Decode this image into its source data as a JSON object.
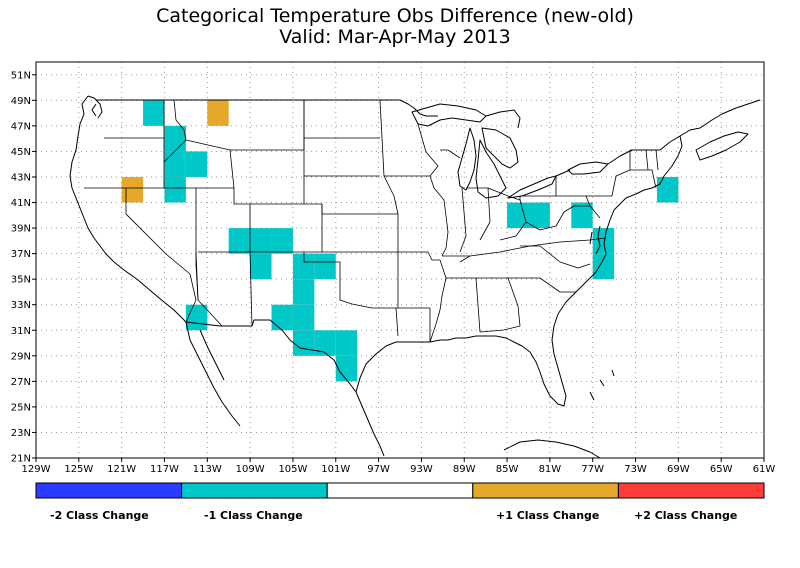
{
  "title": {
    "line1": "Categorical Temperature Obs Difference (new-old)",
    "line2": "Valid: Mar-Apr-May 2013"
  },
  "map": {
    "lon_range": [
      -129,
      -61
    ],
    "lat_range": [
      21,
      52
    ],
    "grid": true,
    "lat_ticks": [
      "51N",
      "49N",
      "47N",
      "45N",
      "43N",
      "41N",
      "39N",
      "37N",
      "35N",
      "33N",
      "31N",
      "29N",
      "27N",
      "25N",
      "23N",
      "21N"
    ],
    "lon_ticks": [
      "129W",
      "125W",
      "121W",
      "117W",
      "113W",
      "109W",
      "105W",
      "101W",
      "97W",
      "93W",
      "89W",
      "85W",
      "81W",
      "77W",
      "73W",
      "69W",
      "65W",
      "61W"
    ],
    "cell_size_deg": 2,
    "cells": [
      {
        "lon": -118,
        "lat": 48,
        "category": -1
      },
      {
        "lon": -116,
        "lat": 46,
        "category": -1
      },
      {
        "lon": -116,
        "lat": 44,
        "category": -1
      },
      {
        "lon": -114,
        "lat": 44,
        "category": -1
      },
      {
        "lon": -116,
        "lat": 42,
        "category": -1
      },
      {
        "lon": -112,
        "lat": 48,
        "category": 1
      },
      {
        "lon": -120,
        "lat": 42,
        "category": 1
      },
      {
        "lon": -110,
        "lat": 38,
        "category": -1
      },
      {
        "lon": -108,
        "lat": 38,
        "category": -1
      },
      {
        "lon": -106,
        "lat": 38,
        "category": -1
      },
      {
        "lon": -108,
        "lat": 36,
        "category": -1
      },
      {
        "lon": -104,
        "lat": 36,
        "category": -1
      },
      {
        "lon": -102,
        "lat": 36,
        "category": -1
      },
      {
        "lon": -104,
        "lat": 34,
        "category": -1
      },
      {
        "lon": -104,
        "lat": 32,
        "category": -1
      },
      {
        "lon": -106,
        "lat": 32,
        "category": -1
      },
      {
        "lon": -114,
        "lat": 32,
        "category": -1
      },
      {
        "lon": -104,
        "lat": 30,
        "category": -1
      },
      {
        "lon": -102,
        "lat": 30,
        "category": -1
      },
      {
        "lon": -100,
        "lat": 30,
        "category": -1
      },
      {
        "lon": -100,
        "lat": 28,
        "category": -1
      },
      {
        "lon": -84,
        "lat": 40,
        "category": -1
      },
      {
        "lon": -82,
        "lat": 40,
        "category": -1
      },
      {
        "lon": -78,
        "lat": 40,
        "category": -1
      },
      {
        "lon": -76,
        "lat": 38,
        "category": -1
      },
      {
        "lon": -76,
        "lat": 36,
        "category": -1
      },
      {
        "lon": -70,
        "lat": 42,
        "category": -1
      }
    ]
  },
  "legend": {
    "items": [
      {
        "category": -2,
        "color": "#2a3cff",
        "label": "-2 Class Change"
      },
      {
        "category": -1,
        "color": "#00c8c8",
        "label": "-1 Class Change"
      },
      {
        "category": 0,
        "color": "#ffffff",
        "label": ""
      },
      {
        "category": 1,
        "color": "#e5a82a",
        "label": "+1 Class Change"
      },
      {
        "category": 2,
        "color": "#ff3c3c",
        "label": "+2 Class Change"
      }
    ]
  }
}
